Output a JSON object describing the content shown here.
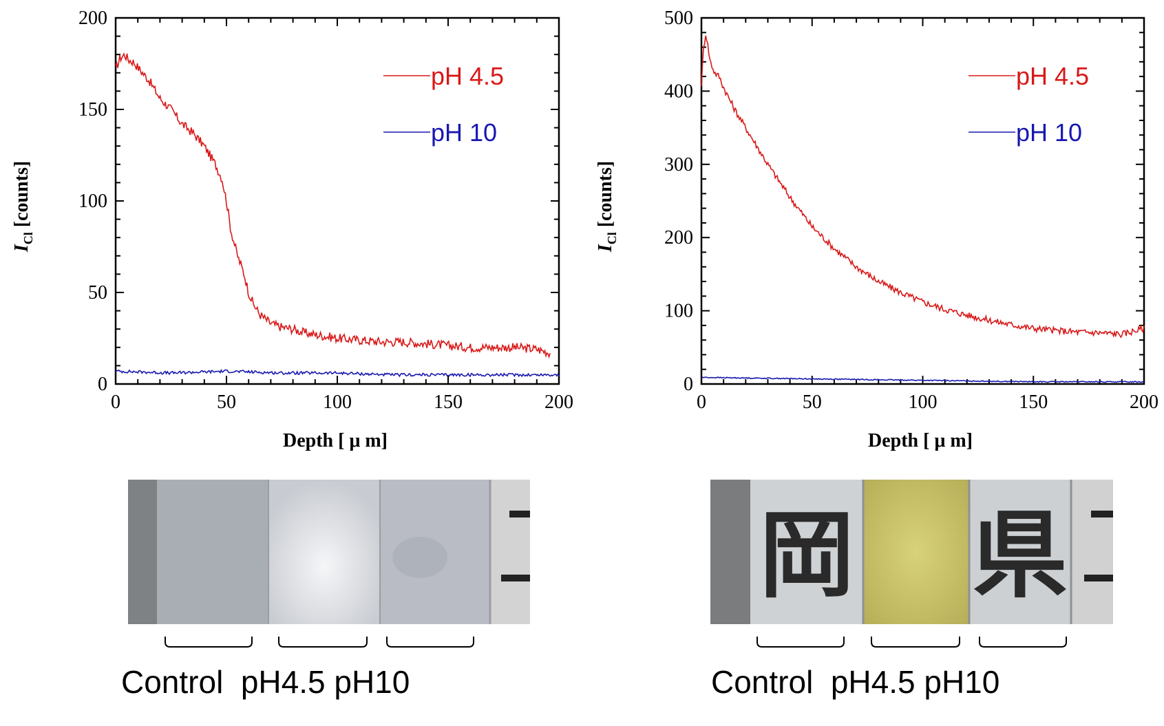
{
  "chart_data": [
    {
      "type": "line",
      "xlabel": "Depth [ μ m]",
      "ylabel_main": "I",
      "ylabel_sub": "Cl",
      "ylabel_rest": " [counts]",
      "xlim": [
        0,
        200
      ],
      "ylim": [
        0,
        200
      ],
      "xticks": [
        "0",
        "50",
        "100",
        "150",
        "200"
      ],
      "yticks": [
        "0",
        "50",
        "100",
        "150",
        "200"
      ],
      "legend_position": "top-right",
      "series": [
        {
          "name": "pH 4.5",
          "color": "#d81818",
          "x": [
            0,
            2,
            4,
            6,
            8,
            10,
            15,
            20,
            25,
            30,
            35,
            40,
            45,
            48,
            50,
            52,
            55,
            58,
            60,
            62,
            65,
            68,
            70,
            75,
            80,
            85,
            90,
            95,
            100,
            110,
            120,
            130,
            140,
            150,
            160,
            170,
            180,
            190,
            196
          ],
          "y": [
            172,
            178,
            180,
            177,
            176,
            173,
            166,
            156,
            150,
            142,
            137,
            130,
            120,
            112,
            100,
            84,
            70,
            60,
            50,
            44,
            38,
            35,
            33,
            31,
            30,
            28,
            27,
            26,
            25,
            24,
            23,
            23,
            22,
            21,
            20,
            20,
            20,
            19,
            17
          ]
        },
        {
          "name": "pH 10",
          "color": "#1818b0",
          "x": [
            0,
            25,
            50,
            75,
            100,
            125,
            150,
            175,
            200
          ],
          "y": [
            7,
            6,
            7,
            6,
            6,
            5,
            5,
            5,
            5
          ]
        }
      ]
    },
    {
      "type": "line",
      "xlabel": "Depth [ μ m]",
      "ylabel_main": "I",
      "ylabel_sub": "Cl",
      "ylabel_rest": " [counts]",
      "xlim": [
        0,
        200
      ],
      "ylim": [
        0,
        500
      ],
      "xticks": [
        "0",
        "50",
        "100",
        "150",
        "200"
      ],
      "yticks": [
        "0",
        "100",
        "200",
        "300",
        "400",
        "500"
      ],
      "legend_position": "top-right",
      "series": [
        {
          "name": "pH 4.5",
          "color": "#d81818",
          "x": [
            0,
            1,
            2,
            4,
            6,
            8,
            10,
            15,
            20,
            25,
            30,
            40,
            50,
            60,
            70,
            80,
            90,
            100,
            110,
            120,
            130,
            140,
            150,
            160,
            170,
            180,
            190,
            195,
            200
          ],
          "y": [
            410,
            460,
            480,
            440,
            425,
            420,
            405,
            375,
            350,
            325,
            300,
            255,
            215,
            185,
            160,
            140,
            125,
            112,
            102,
            94,
            87,
            81,
            76,
            73,
            71,
            70,
            68,
            72,
            76
          ]
        },
        {
          "name": "pH 10",
          "color": "#1818b0",
          "x": [
            0,
            25,
            50,
            75,
            100,
            125,
            150,
            175,
            200
          ],
          "y": [
            9,
            8,
            7,
            6,
            5,
            4,
            3,
            3,
            3
          ]
        }
      ]
    }
  ],
  "photos": [
    {
      "labels": [
        "Control",
        "pH4.5",
        "pH10"
      ],
      "caption": "Control  pH4.5 pH10"
    },
    {
      "labels": [
        "Control",
        "pH4.5",
        "pH10"
      ],
      "caption": "Control  pH4.5 pH10",
      "printed_characters": [
        "岡",
        "県"
      ]
    }
  ]
}
